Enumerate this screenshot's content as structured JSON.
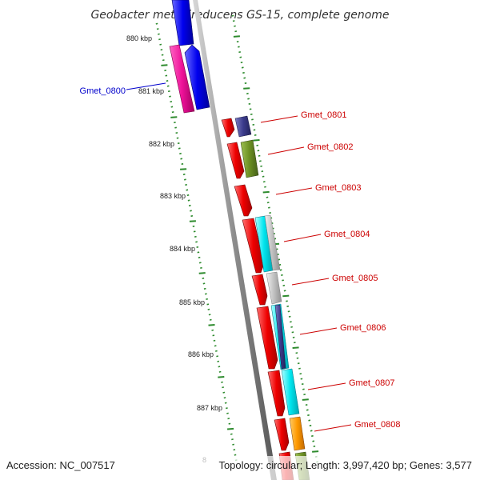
{
  "title": "Geobacter metallireducens GS-15, complete genome",
  "accession": "Accession: NC_007517",
  "topology": "Topology: circular; Length: 3,997,420 bp; Genes: 3,577",
  "kbp_labels": [
    "880 kbp",
    "881 kbp",
    "882 kbp",
    "883 kbp",
    "884 kbp",
    "885 kbp",
    "886 kbp",
    "887 kbp",
    "8"
  ],
  "genes": [
    {
      "name": "Gmet_0800",
      "color": "#0000cc"
    },
    {
      "name": "Gmet_0801",
      "color": "#cc0000"
    },
    {
      "name": "Gmet_0802",
      "color": "#cc0000"
    },
    {
      "name": "Gmet_0803",
      "color": "#cc0000"
    },
    {
      "name": "Gmet_0804",
      "color": "#cc0000"
    },
    {
      "name": "Gmet_0805",
      "color": "#cc0000"
    },
    {
      "name": "Gmet_0806",
      "color": "#cc0000"
    },
    {
      "name": "Gmet_0807",
      "color": "#cc0000"
    },
    {
      "name": "Gmet_0808",
      "color": "#cc0000"
    }
  ],
  "colors": {
    "backbone": "#8c8c8c",
    "tick": "#2e8b2e",
    "strand_forward": "#0000ee",
    "strand_reverse": "#ee0000",
    "magenta": "#ee1199",
    "indigo": "#3c3c8c",
    "olive": "#6b8e23",
    "cyan": "#00e5ee",
    "silver": "#c0c0c0",
    "orange": "#ff9900"
  }
}
